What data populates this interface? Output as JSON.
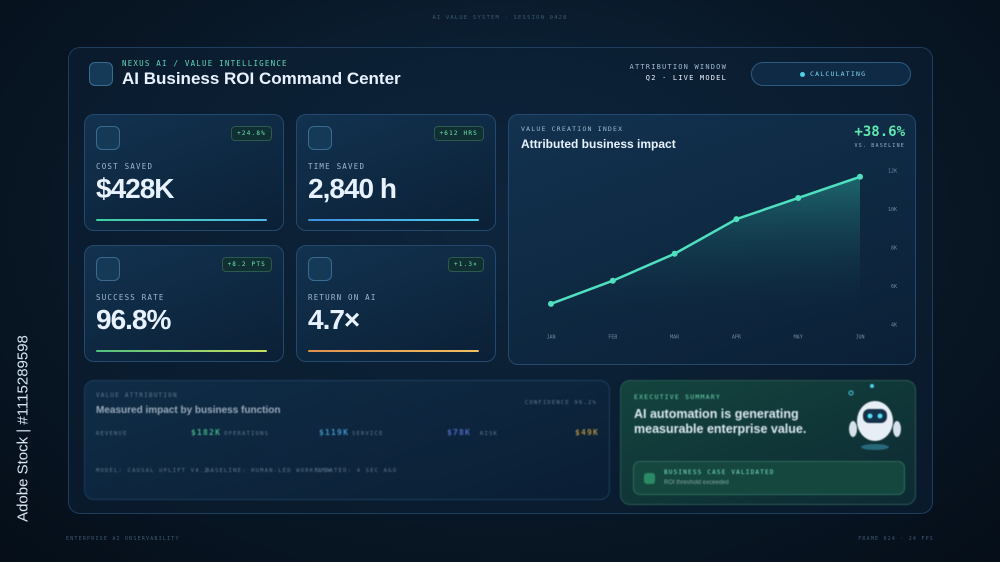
{
  "top_caption": "AI VALUE SYSTEM · SESSION 0428",
  "watermark": "Adobe Stock | #1115289598",
  "header": {
    "eyebrow": "NEXUS AI / VALUE INTELLIGENCE",
    "title": "AI Business ROI Command Center",
    "window_label": "ATTRIBUTION WINDOW",
    "window_value": "Q2 · LIVE MODEL",
    "status": "CALCULATING"
  },
  "kpis": [
    {
      "label": "COST SAVED",
      "value": "$428K",
      "badge": "+24.8%"
    },
    {
      "label": "TIME SAVED",
      "value": "2,840 h",
      "badge": "+612 HRS"
    },
    {
      "label": "SUCCESS RATE",
      "value": "96.8%",
      "badge": "+8.2 PTS"
    },
    {
      "label": "RETURN ON AI",
      "value": "4.7×",
      "badge": "+1.3×"
    }
  ],
  "chart": {
    "eyebrow": "VALUE CREATION INDEX",
    "title": "Attributed business impact",
    "delta": "+38.6%",
    "delta_note": "VS. BASELINE",
    "chart_data": {
      "type": "line",
      "categories": [
        "JAN",
        "FEB",
        "MAR",
        "APR",
        "MAY",
        "JUN"
      ],
      "values": [
        5100,
        6300,
        7700,
        9500,
        10600,
        11700
      ],
      "color": "#4fe0c0",
      "ylim": [
        4000,
        12000
      ],
      "yticks": [
        {
          "value": 12000,
          "label": "12K"
        },
        {
          "value": 10000,
          "label": "10K"
        },
        {
          "value": 8000,
          "label": "8K"
        },
        {
          "value": 6000,
          "label": "6K"
        },
        {
          "value": 4000,
          "label": "4K"
        }
      ]
    }
  },
  "attribution": {
    "eyebrow": "VALUE ATTRIBUTION",
    "title": "Measured impact by business function",
    "confidence": "CONFIDENCE 96.2%",
    "items": [
      {
        "label": "REVENUE",
        "value": "$182K"
      },
      {
        "label": "OPERATIONS",
        "value": "$119K"
      },
      {
        "label": "SERVICE",
        "value": "$78K"
      },
      {
        "label": "RISK",
        "value": "$49K"
      }
    ],
    "footer": [
      "MODEL: Causal uplift v4.2",
      "BASELINE: Human-led workflow",
      "UPDATED: 4 sec ago"
    ]
  },
  "summary": {
    "eyebrow": "EXECUTIVE SUMMARY",
    "text": "AI automation is generating measurable enterprise value.",
    "badge_title": "BUSINESS CASE VALIDATED",
    "badge_note": "ROI threshold exceeded"
  },
  "footer": {
    "left": "ENTERPRISE AI OBSERVABILITY",
    "right": "FRAME 024 · 24 FPS"
  }
}
